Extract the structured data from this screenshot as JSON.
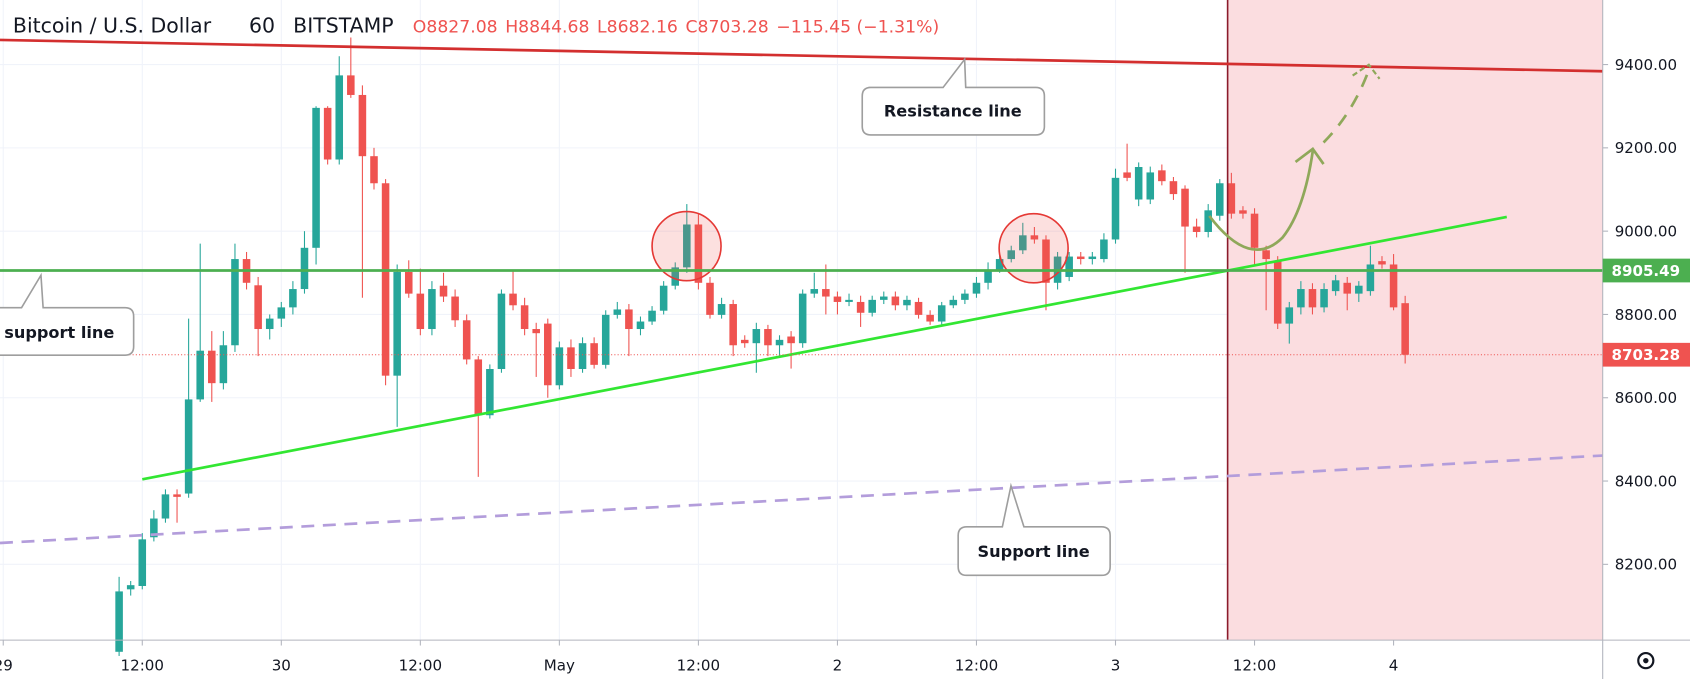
{
  "header": {
    "symbol": "Bitcoin / U.S. Dollar",
    "interval": "60",
    "exchange": "BITSTAMP",
    "ohlc": [
      {
        "label": "O",
        "value": 8827.08
      },
      {
        "label": "H",
        "value": 8844.68
      },
      {
        "label": "L",
        "value": 8682.16
      },
      {
        "label": "C",
        "value": 8703.28
      }
    ],
    "change": "−115.45 (−1.31%)"
  },
  "chart_data": {
    "type": "candlestick",
    "up_color": "#26a69a",
    "down_color": "#ef5350",
    "grid": true,
    "xlim": [
      -0.28,
      138.05
    ],
    "ylim": [
      8018,
      9555
    ],
    "xticks": [
      {
        "value": 0,
        "label": "29"
      },
      {
        "value": 12,
        "label": "12:00"
      },
      {
        "value": 24,
        "label": "30"
      },
      {
        "value": 36,
        "label": "12:00"
      },
      {
        "value": 48,
        "label": "May"
      },
      {
        "value": 60,
        "label": "12:00"
      },
      {
        "value": 72,
        "label": "2"
      },
      {
        "value": 84,
        "label": "12:00"
      },
      {
        "value": 96,
        "label": "3"
      },
      {
        "value": 108,
        "label": "12:00"
      },
      {
        "value": 120,
        "label": "4"
      }
    ],
    "yticks": [
      {
        "value": 8200,
        "label": "8200.00"
      },
      {
        "value": 8400,
        "label": "8400.00"
      },
      {
        "value": 8600,
        "label": "8600.00"
      },
      {
        "value": 8800,
        "label": "8800.00"
      },
      {
        "value": 9000,
        "label": "9000.00"
      },
      {
        "value": 9200,
        "label": "9200.00"
      },
      {
        "value": 9400,
        "label": "9400.00"
      }
    ],
    "price_labels": [
      {
        "value": 8905.49,
        "color": "#4caf50"
      },
      {
        "value": 8703.28,
        "color": "#ef5350"
      }
    ],
    "annotations": [
      "Resistance line",
      "support line",
      "Support line"
    ],
    "x": [
      10,
      11,
      12,
      13,
      14,
      15,
      16,
      17,
      18,
      19,
      20,
      21,
      22,
      23,
      24,
      25,
      26,
      27,
      28,
      29,
      30,
      31,
      32,
      33,
      34,
      35,
      36,
      37,
      38,
      39,
      40,
      41,
      42,
      43,
      44,
      45,
      46,
      47,
      48,
      49,
      50,
      51,
      52,
      53,
      54,
      55,
      56,
      57,
      58,
      59,
      60,
      61,
      62,
      63,
      64,
      65,
      66,
      67,
      68,
      69,
      70,
      71,
      72,
      73,
      74,
      75,
      76,
      77,
      78,
      79,
      80,
      81,
      82,
      83,
      84,
      85,
      86,
      87,
      88,
      89,
      90,
      91,
      92,
      93,
      94,
      95,
      96,
      97,
      98,
      99,
      100,
      101,
      102,
      103,
      104,
      105,
      106,
      107,
      108,
      109,
      110,
      111,
      112,
      113,
      114,
      115,
      116,
      117,
      118,
      119,
      120,
      121
    ],
    "open": [
      7990,
      8140,
      8148,
      8265,
      8310,
      8368,
      8370,
      8596,
      8713,
      8635,
      8726,
      8933,
      8870,
      8765,
      8790,
      8817,
      8861,
      8960,
      9296,
      9172,
      9374,
      9327,
      9180,
      9115,
      8653,
      8902,
      8850,
      8765,
      8869,
      8843,
      8786,
      8692,
      8558,
      8669,
      8850,
      8822,
      8765,
      8778,
      8630,
      8721,
      8669,
      8731,
      8679,
      8799,
      8812,
      8765,
      8783,
      8809,
      8869,
      8913,
      9016,
      8876,
      8799,
      8825,
      8739,
      8731,
      8765,
      8726,
      8747,
      8731,
      8850,
      8861,
      8843,
      8830,
      8830,
      8804,
      8835,
      8843,
      8822,
      8830,
      8799,
      8783,
      8822,
      8835,
      8850,
      8876,
      8908,
      8933,
      8954,
      8990,
      8980,
      8876,
      8890,
      8939,
      8933,
      8933,
      8980,
      9141,
      9076,
      9076,
      9146,
      9120,
      9102,
      9011,
      8998,
      9037,
      9115,
      9050,
      9042,
      8954,
      8928,
      8778,
      8817,
      8861,
      8817,
      8856,
      8876,
      8850,
      8856,
      8928,
      8920,
      8827.08
    ],
    "high": [
      8170,
      8160,
      8275,
      8330,
      8380,
      8380,
      8790,
      8970,
      8760,
      8760,
      8970,
      8950,
      8890,
      8800,
      8830,
      8880,
      9000,
      9300,
      9300,
      9420,
      9465,
      9350,
      9200,
      9125,
      8920,
      8930,
      8910,
      8880,
      8900,
      8860,
      8800,
      8700,
      8680,
      8860,
      8905,
      8840,
      8780,
      8790,
      8735,
      8740,
      8745,
      8745,
      8810,
      8830,
      8825,
      8795,
      8820,
      8880,
      8925,
      9065,
      9040,
      8890,
      8840,
      8835,
      8750,
      8780,
      8775,
      8750,
      8760,
      8860,
      8900,
      8920,
      8855,
      8850,
      8845,
      8845,
      8855,
      8855,
      8845,
      8840,
      8810,
      8830,
      8845,
      8860,
      8890,
      8925,
      8945,
      8965,
      9020,
      9010,
      8990,
      8950,
      8950,
      8950,
      8950,
      8995,
      9150,
      9210,
      9165,
      9155,
      9160,
      9130,
      9110,
      9030,
      9065,
      9125,
      9140,
      9060,
      9055,
      8965,
      8940,
      8830,
      8880,
      8875,
      8875,
      8895,
      8890,
      8880,
      8965,
      8940,
      8945,
      8844.68
    ],
    "low": [
      7980,
      8125,
      8140,
      8255,
      8300,
      8300,
      8360,
      8590,
      8590,
      8620,
      8710,
      8860,
      8700,
      8740,
      8770,
      8800,
      8850,
      8920,
      9160,
      9160,
      9320,
      8840,
      9100,
      8630,
      8530,
      8840,
      8750,
      8750,
      8830,
      8770,
      8680,
      8410,
      8550,
      8660,
      8810,
      8750,
      8650,
      8600,
      8620,
      8650,
      8660,
      8670,
      8670,
      8790,
      8700,
      8750,
      8775,
      8800,
      8860,
      8900,
      8860,
      8790,
      8790,
      8700,
      8720,
      8660,
      8700,
      8700,
      8670,
      8720,
      8840,
      8800,
      8800,
      8820,
      8770,
      8795,
      8825,
      8810,
      8810,
      8790,
      8775,
      8775,
      8815,
      8825,
      8840,
      8860,
      8900,
      8925,
      8945,
      8970,
      8810,
      8860,
      8880,
      8920,
      8920,
      8925,
      8970,
      9120,
      9060,
      9065,
      9110,
      9075,
      8900,
      8985,
      8985,
      9025,
      9030,
      9030,
      8920,
      8810,
      8765,
      8730,
      8800,
      8800,
      8805,
      8845,
      8810,
      8830,
      8845,
      8910,
      8810,
      8682.16
    ],
    "close": [
      8135,
      8150,
      8260,
      8310,
      8368,
      8362,
      8596,
      8713,
      8635,
      8726,
      8933,
      8876,
      8765,
      8790,
      8817,
      8861,
      8960,
      9296,
      9172,
      9374,
      9327,
      9180,
      9115,
      8653,
      8902,
      8850,
      8765,
      8861,
      8843,
      8786,
      8692,
      8558,
      8669,
      8850,
      8822,
      8765,
      8755,
      8630,
      8721,
      8669,
      8731,
      8679,
      8799,
      8812,
      8765,
      8783,
      8809,
      8869,
      8913,
      9016,
      8876,
      8799,
      8825,
      8726,
      8731,
      8765,
      8726,
      8739,
      8731,
      8850,
      8861,
      8843,
      8830,
      8835,
      8804,
      8835,
      8843,
      8822,
      8835,
      8799,
      8783,
      8822,
      8835,
      8850,
      8876,
      8908,
      8933,
      8954,
      8990,
      8980,
      8876,
      8939,
      8939,
      8933,
      8939,
      8980,
      9128,
      9128,
      9154,
      9141,
      9120,
      9089,
      9011,
      8998,
      9050,
      9115,
      9042,
      9042,
      8960,
      8933,
      8778,
      8817,
      8861,
      8817,
      8861,
      8882,
      8850,
      8869,
      8920,
      8920,
      8817,
      8703.28
    ]
  }
}
